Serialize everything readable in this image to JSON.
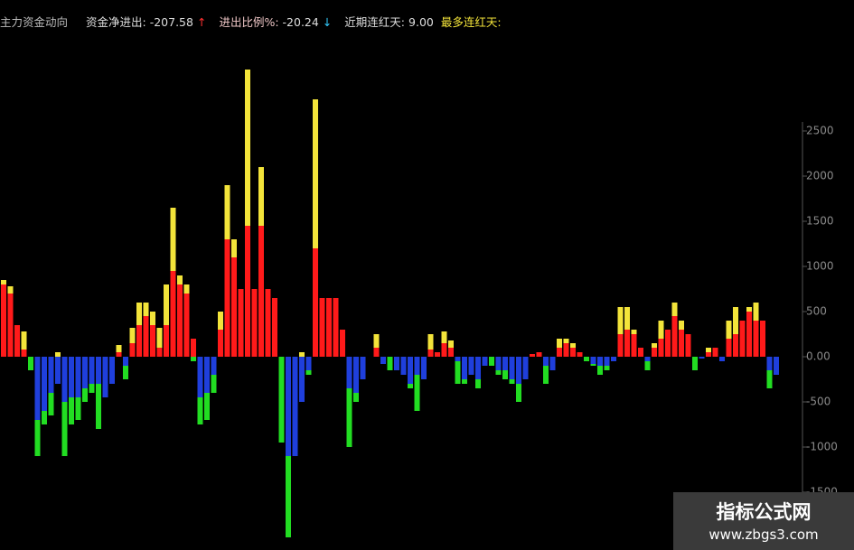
{
  "chart_data": {
    "type": "bar",
    "title": "主力资金动向",
    "indicators": [
      {
        "label": "资金净进出:",
        "value": "-207.58",
        "arrow": "↑"
      },
      {
        "label": "进出比例%:",
        "value": "-20.24",
        "arrow": "↓"
      },
      {
        "label": "近期连红天:",
        "value": "9.00"
      },
      {
        "label": "最多连红天:"
      }
    ],
    "watermark": {
      "title": "指标公式网",
      "url": "www.zbgs3.com"
    },
    "categories": [
      null,
      null,
      null,
      null,
      null,
      null,
      null,
      null,
      null,
      null,
      null,
      null,
      null,
      null,
      null,
      null,
      null,
      null,
      null,
      null,
      null,
      null,
      null,
      null,
      null,
      null,
      null,
      null,
      null,
      null,
      null,
      null,
      null,
      null,
      null,
      null,
      null,
      null,
      null,
      null,
      null,
      null,
      null,
      null,
      null,
      null,
      null,
      null,
      null,
      null,
      null,
      null,
      null,
      null,
      null,
      null,
      null,
      null,
      null,
      null,
      null,
      null,
      null,
      null,
      null,
      null,
      null,
      null,
      null,
      null,
      null,
      null,
      null,
      null,
      null,
      null,
      null,
      null,
      null,
      null,
      null,
      null,
      null,
      null,
      null,
      null,
      null,
      null,
      null,
      null,
      null,
      null,
      null,
      null,
      null,
      null,
      null,
      null,
      null,
      null,
      null,
      null,
      null,
      null,
      null,
      null,
      null,
      null,
      null,
      null,
      null,
      null,
      null,
      null,
      null
    ],
    "series": [
      {
        "color": "#f3e43a",
        "values": [
          850,
          780,
          null,
          280,
          null,
          null,
          null,
          null,
          50,
          null,
          null,
          null,
          null,
          null,
          null,
          null,
          null,
          130,
          null,
          320,
          600,
          600,
          500,
          320,
          800,
          1650,
          900,
          800,
          null,
          null,
          null,
          null,
          500,
          1900,
          1300,
          null,
          3180,
          null,
          2100,
          null,
          null,
          null,
          null,
          null,
          50,
          null,
          2850,
          null,
          null,
          null,
          null,
          null,
          null,
          null,
          null,
          250,
          null,
          null,
          null,
          null,
          null,
          null,
          null,
          250,
          null,
          280,
          180,
          null,
          null,
          null,
          null,
          null,
          null,
          null,
          null,
          null,
          null,
          null,
          null,
          null,
          null,
          null,
          200,
          200,
          150,
          null,
          null,
          null,
          null,
          null,
          null,
          550,
          550,
          300,
          null,
          null,
          150,
          400,
          null,
          600,
          400,
          null,
          null,
          null,
          100,
          null,
          null,
          400,
          550,
          null,
          550,
          600,
          null,
          null,
          null
        ]
      },
      {
        "color": "#ff1a1a",
        "values": [
          800,
          700,
          350,
          80,
          null,
          null,
          null,
          null,
          null,
          null,
          null,
          null,
          null,
          null,
          null,
          null,
          null,
          50,
          null,
          150,
          350,
          450,
          350,
          100,
          350,
          950,
          800,
          700,
          200,
          null,
          null,
          null,
          300,
          1300,
          1100,
          750,
          1450,
          750,
          1450,
          750,
          650,
          null,
          null,
          null,
          null,
          null,
          1200,
          650,
          650,
          650,
          300,
          null,
          null,
          null,
          null,
          100,
          null,
          null,
          null,
          null,
          null,
          null,
          null,
          80,
          50,
          150,
          100,
          null,
          null,
          null,
          null,
          null,
          null,
          null,
          null,
          null,
          null,
          null,
          30,
          50,
          null,
          null,
          100,
          150,
          100,
          50,
          null,
          null,
          null,
          null,
          null,
          250,
          300,
          250,
          100,
          null,
          100,
          200,
          300,
          450,
          300,
          250,
          null,
          null,
          50,
          100,
          null,
          200,
          250,
          400,
          500,
          400,
          400,
          null,
          null
        ]
      },
      {
        "color": "#22dd22",
        "values": [
          null,
          null,
          null,
          null,
          -150,
          -1100,
          -750,
          -650,
          null,
          -1100,
          -750,
          -700,
          -500,
          -400,
          -800,
          null,
          null,
          null,
          -250,
          null,
          null,
          null,
          null,
          null,
          null,
          null,
          null,
          null,
          -50,
          -750,
          -700,
          -400,
          null,
          null,
          null,
          null,
          null,
          null,
          null,
          null,
          null,
          -950,
          -2000,
          null,
          null,
          -200,
          null,
          null,
          null,
          null,
          null,
          -1000,
          -500,
          null,
          null,
          null,
          null,
          -150,
          null,
          null,
          -350,
          -600,
          null,
          null,
          null,
          null,
          null,
          -300,
          -300,
          null,
          -350,
          null,
          -100,
          -200,
          -250,
          -300,
          -500,
          null,
          null,
          null,
          -300,
          null,
          null,
          null,
          null,
          null,
          -50,
          -100,
          -200,
          -150,
          null,
          null,
          null,
          null,
          null,
          -150,
          null,
          null,
          null,
          null,
          null,
          null,
          -150,
          null,
          null,
          null,
          null,
          null,
          null,
          null,
          null,
          null,
          null,
          -350,
          null
        ]
      },
      {
        "color": "#1f3fdc",
        "values": [
          null,
          null,
          null,
          null,
          null,
          -700,
          -600,
          -400,
          -300,
          -500,
          -450,
          -450,
          -350,
          -300,
          -300,
          -450,
          -300,
          null,
          -100,
          null,
          null,
          null,
          null,
          null,
          null,
          null,
          null,
          null,
          null,
          -450,
          -400,
          -200,
          null,
          null,
          null,
          null,
          null,
          null,
          null,
          null,
          null,
          null,
          -1100,
          -1100,
          -500,
          -150,
          null,
          null,
          null,
          null,
          null,
          -350,
          -400,
          -250,
          null,
          null,
          -80,
          null,
          -150,
          -200,
          -300,
          -200,
          -250,
          null,
          null,
          null,
          null,
          -50,
          -250,
          -200,
          -250,
          -100,
          null,
          -150,
          -150,
          -250,
          -300,
          -250,
          null,
          null,
          -100,
          -150,
          null,
          null,
          null,
          null,
          null,
          -80,
          -100,
          -100,
          -50,
          null,
          null,
          null,
          null,
          -50,
          null,
          null,
          null,
          null,
          null,
          null,
          null,
          -20,
          null,
          null,
          -50,
          null,
          null,
          null,
          null,
          null,
          null,
          -150,
          -200
        ]
      }
    ],
    "ylim": [
      -2140,
      3950
    ],
    "yticks": [
      2500,
      2000,
      1500,
      1000,
      500,
      {
        "value": 0,
        "label": "0.00"
      },
      -500,
      -1000,
      -1500
    ]
  }
}
